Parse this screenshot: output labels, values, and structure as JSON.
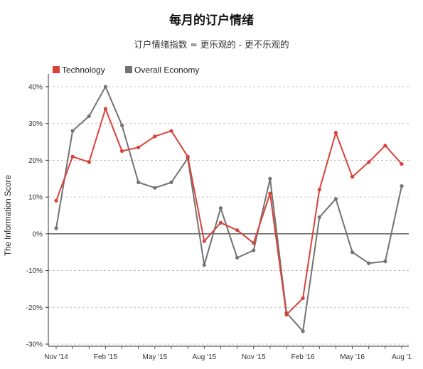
{
  "chart_data": {
    "type": "line",
    "title": "每月的订户情绪",
    "subtitle": "订户情绪指数 = 更乐观的 - 更不乐观的",
    "ylabel": "The Information Score",
    "xlabel": "",
    "ylim": [
      -30,
      40
    ],
    "yticks": [
      -30,
      -20,
      -10,
      0,
      10,
      20,
      30,
      40
    ],
    "ytick_labels": [
      "-30%",
      "-20%",
      "-10%",
      "0%",
      "10%",
      "20%",
      "30%",
      "40%"
    ],
    "xtick_labels": [
      {
        "label": "Nov '14",
        "index": 0
      },
      {
        "label": "Feb '15",
        "index": 3
      },
      {
        "label": "May '15",
        "index": 6
      },
      {
        "label": "Aug '15",
        "index": 9
      },
      {
        "label": "Nov '15",
        "index": 12
      },
      {
        "label": "Feb '16",
        "index": 15
      },
      {
        "label": "May '16",
        "index": 18
      },
      {
        "label": "Aug '1",
        "index": 21
      }
    ],
    "x_count": 22,
    "grid": "horizontal-dashed",
    "legend_position": "top-left",
    "series": [
      {
        "name": "Technology",
        "color": "#d9423a",
        "values": [
          9,
          21,
          19.5,
          34,
          22.5,
          23.5,
          26.5,
          28,
          21,
          -2,
          3,
          1,
          -2.5,
          11,
          -22,
          -17.5,
          12,
          27.5,
          15.5,
          19.5,
          24,
          19
        ]
      },
      {
        "name": "Overall Economy",
        "color": "#737373",
        "values": [
          1.5,
          28,
          32,
          40,
          29.5,
          14,
          12.5,
          14,
          20.5,
          -8.5,
          7,
          -6.5,
          -4.5,
          15,
          -21.5,
          -26.5,
          4.5,
          9.5,
          -5,
          -8,
          -7.5,
          13
        ]
      }
    ]
  }
}
